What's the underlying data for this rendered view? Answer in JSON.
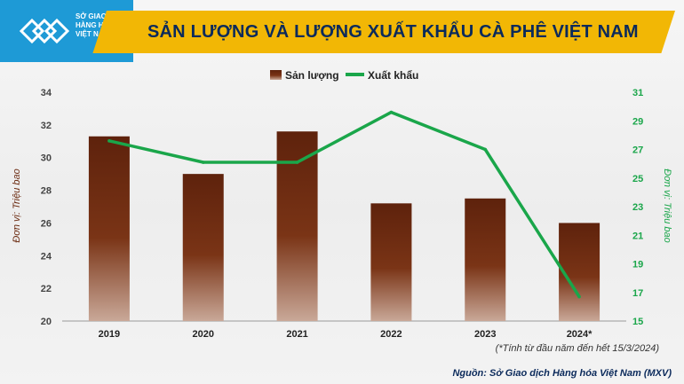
{
  "header": {
    "logo_lines": [
      "SỞ GIAO DỊCH",
      "HÀNG HÓA",
      "VIỆT NAM"
    ],
    "title": "SẢN LƯỢNG VÀ LƯỢNG XUẤT KHẨU CÀ PHÊ VIỆT NAM"
  },
  "footer": {
    "note": "(*Tính từ đầu năm đến hết 15/3/2024)",
    "source": "Nguồn: Sở Giao dịch Hàng hóa Việt Nam (MXV)"
  },
  "colors": {
    "bar": "#6b2a10",
    "line": "#1aa64a",
    "accent": "#f2b705",
    "logo": "#1e9ad6",
    "title": "#0b2a5b"
  },
  "chart_data": {
    "type": "bar+line",
    "categories": [
      "2019",
      "2020",
      "2021",
      "2022",
      "2023",
      "2024*"
    ],
    "series": [
      {
        "name": "Sản lượng",
        "type": "bar",
        "axis": "left",
        "values": [
          31.3,
          29.0,
          31.6,
          27.2,
          27.5,
          26.0
        ]
      },
      {
        "name": "Xuất khẩu",
        "type": "line",
        "axis": "right",
        "values": [
          27.6,
          26.1,
          26.1,
          29.6,
          27.0,
          16.7
        ]
      }
    ],
    "ylabel_left": "Đơn vị: Triệu bao",
    "ylabel_right": "Đơn vị: Triệu bao",
    "ylim_left": [
      20,
      34
    ],
    "yticks_left": [
      20,
      22,
      24,
      26,
      28,
      30,
      32,
      34
    ],
    "ylim_right": [
      15,
      31
    ],
    "yticks_right": [
      15,
      17,
      19,
      21,
      23,
      25,
      27,
      29,
      31
    ],
    "legend_position": "top-center",
    "grid": false
  }
}
